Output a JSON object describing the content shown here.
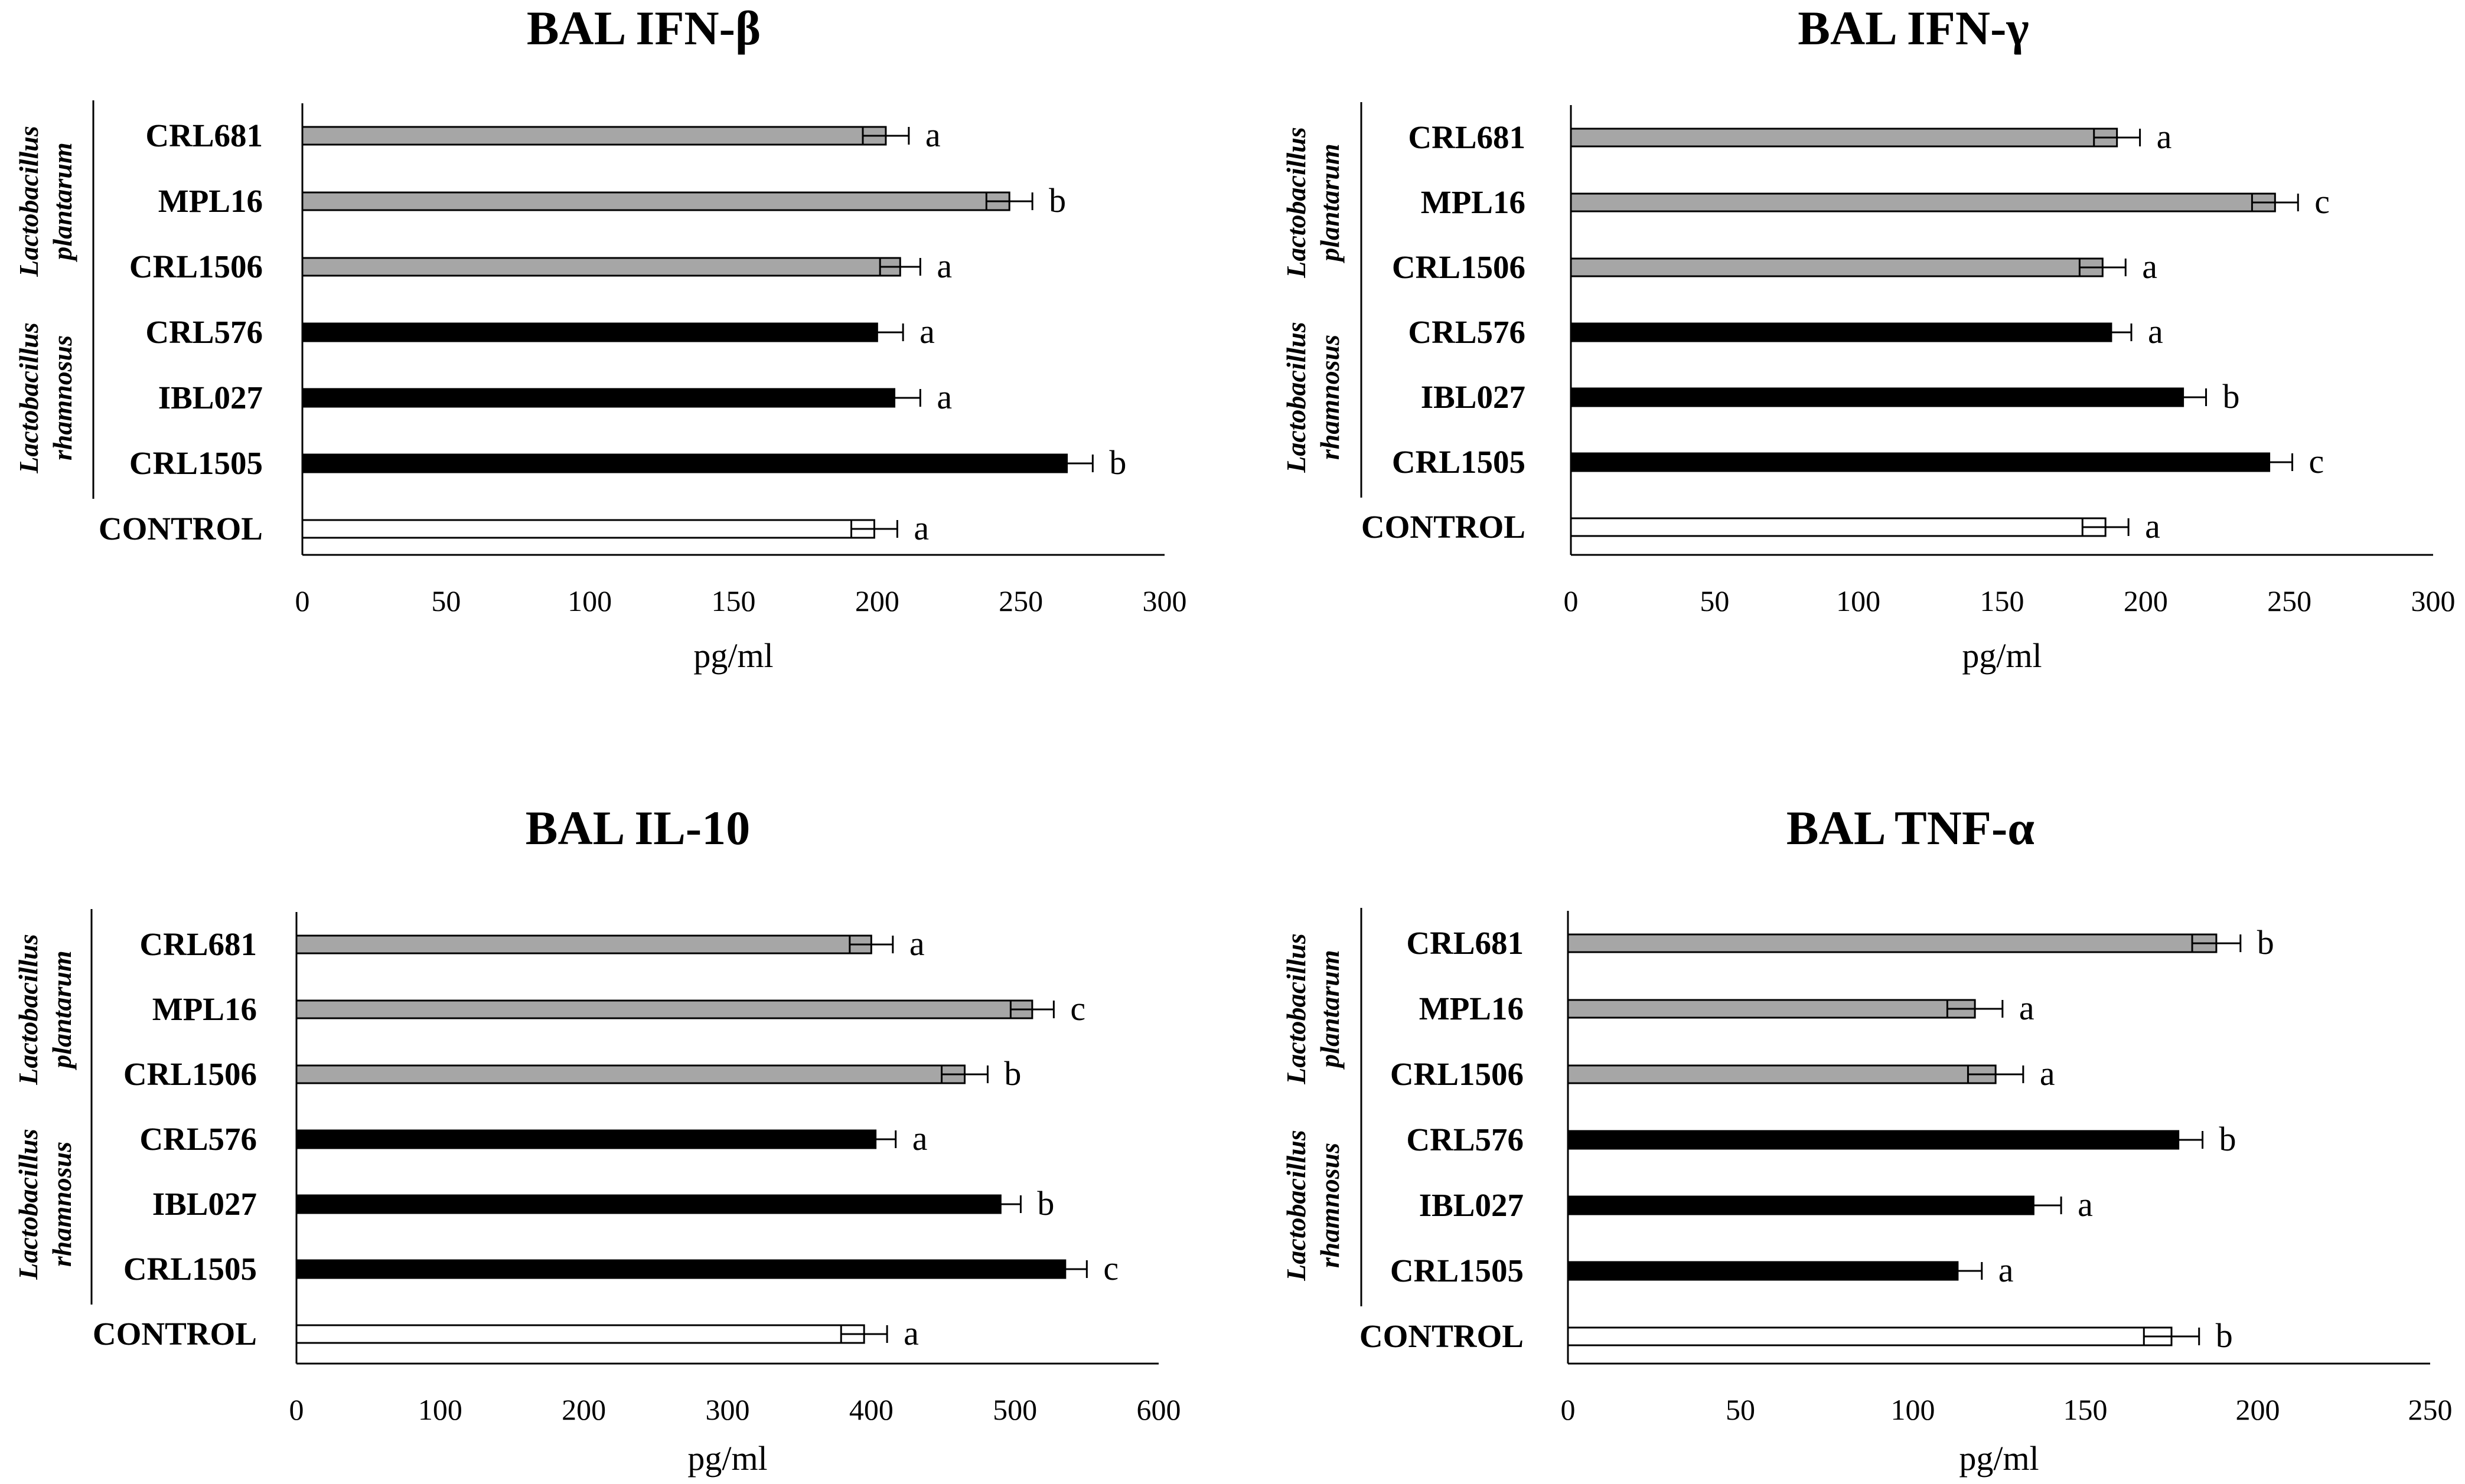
{
  "colors": {
    "plantarum": "#a6a6a6",
    "rhamnosus": "#000000",
    "control": "#ffffff",
    "outline": "#000000"
  },
  "chart_data": [
    {
      "type": "bar",
      "orientation": "horizontal",
      "title": "BAL IFN-β",
      "xlabel": "pg/ml",
      "xlim": [
        0,
        300
      ],
      "xticks": [
        "0",
        "50",
        "100",
        "150",
        "200",
        "250",
        "300"
      ],
      "xtick_values": [
        0,
        50,
        100,
        150,
        200,
        250,
        300
      ],
      "categories": [
        "CRL681",
        "MPL16",
        "CRL1506",
        "CRL576",
        "IBL027",
        "CRL1505",
        "CONTROL"
      ],
      "groups": [
        "plantarum",
        "plantarum",
        "plantarum",
        "rhamnosus",
        "rhamnosus",
        "rhamnosus",
        "control"
      ],
      "values": [
        203,
        246,
        208,
        200,
        206,
        266,
        199
      ],
      "errors": [
        8,
        8,
        7,
        9,
        9,
        9,
        8
      ],
      "significance": [
        "a",
        "b",
        "a",
        "a",
        "a",
        "b",
        "a"
      ],
      "group_labels": [
        {
          "line1": "Lactobacillus",
          "line2": "plantarum"
        },
        {
          "line1": "Lactobacillus",
          "line2": "rhamnosus"
        }
      ]
    },
    {
      "type": "bar",
      "orientation": "horizontal",
      "title": "BAL IFN-γ",
      "xlabel": "pg/ml",
      "xlim": [
        0,
        300
      ],
      "xticks": [
        "0",
        "50",
        "100",
        "150",
        "200",
        "250",
        "300"
      ],
      "xtick_values": [
        0,
        50,
        100,
        150,
        200,
        250,
        300
      ],
      "categories": [
        "CRL681",
        "MPL16",
        "CRL1506",
        "CRL576",
        "IBL027",
        "CRL1505",
        "CONTROL"
      ],
      "groups": [
        "plantarum",
        "plantarum",
        "plantarum",
        "rhamnosus",
        "rhamnosus",
        "rhamnosus",
        "control"
      ],
      "values": [
        190,
        245,
        185,
        188,
        213,
        243,
        186
      ],
      "errors": [
        8,
        8,
        8,
        7,
        8,
        8,
        8
      ],
      "significance": [
        "a",
        "c",
        "a",
        "a",
        "b",
        "c",
        "a"
      ],
      "group_labels": [
        {
          "line1": "Lactobacillus",
          "line2": "plantarum"
        },
        {
          "line1": "Lactobacillus",
          "line2": "rhamnosus"
        }
      ]
    },
    {
      "type": "bar",
      "orientation": "horizontal",
      "title": "BAL IL-10",
      "xlabel": "pg/ml",
      "xlim": [
        0,
        600
      ],
      "xticks": [
        "0",
        "100",
        "200",
        "300",
        "400",
        "500",
        "600"
      ],
      "xtick_values": [
        0,
        100,
        200,
        300,
        400,
        500,
        600
      ],
      "categories": [
        "CRL681",
        "MPL16",
        "CRL1506",
        "CRL576",
        "IBL027",
        "CRL1505",
        "CONTROL"
      ],
      "groups": [
        "plantarum",
        "plantarum",
        "plantarum",
        "rhamnosus",
        "rhamnosus",
        "rhamnosus",
        "control"
      ],
      "values": [
        400,
        512,
        465,
        403,
        490,
        535,
        395
      ],
      "errors": [
        15,
        15,
        16,
        14,
        14,
        15,
        16
      ],
      "significance": [
        "a",
        "c",
        "b",
        "a",
        "b",
        "c",
        "a"
      ],
      "group_labels": [
        {
          "line1": "Lactobacillus",
          "line2": "plantarum"
        },
        {
          "line1": "Lactobacillus",
          "line2": "rhamnosus"
        }
      ]
    },
    {
      "type": "bar",
      "orientation": "horizontal",
      "title": "BAL TNF-α",
      "xlabel": "pg/ml",
      "xlim": [
        0,
        250
      ],
      "xticks": [
        "0",
        "50",
        "100",
        "150",
        "200",
        "250"
      ],
      "xtick_values": [
        0,
        50,
        100,
        150,
        200,
        250
      ],
      "categories": [
        "CRL681",
        "MPL16",
        "CRL1506",
        "CRL576",
        "IBL027",
        "CRL1505",
        "CONTROL"
      ],
      "groups": [
        "plantarum",
        "plantarum",
        "plantarum",
        "rhamnosus",
        "rhamnosus",
        "rhamnosus",
        "control"
      ],
      "values": [
        188,
        118,
        124,
        177,
        135,
        113,
        175
      ],
      "errors": [
        7,
        8,
        8,
        7,
        8,
        7,
        8
      ],
      "significance": [
        "b",
        "a",
        "a",
        "b",
        "a",
        "a",
        "b"
      ],
      "group_labels": [
        {
          "line1": "Lactobacillus",
          "line2": "plantarum"
        },
        {
          "line1": "Lactobacillus",
          "line2": "rhamnosus"
        }
      ]
    }
  ]
}
